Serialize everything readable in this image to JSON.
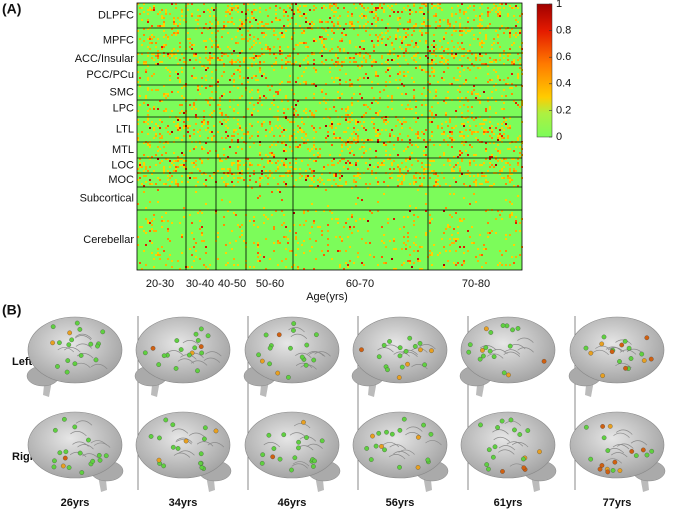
{
  "panel_a": {
    "label": "(A)",
    "regions": [
      "DLPFC",
      "MPFC",
      "ACC/Insular",
      "PCC/PCu",
      "SMC",
      "LPC",
      "LTL",
      "MTL",
      "LOC",
      "MOC",
      "Subcortical",
      "Cerebellar"
    ],
    "age_groups": [
      "20-30",
      "30-40",
      "40-50",
      "50-60",
      "60-70",
      "70-80"
    ],
    "xlabel": "Age(yrs)",
    "colorbar": {
      "lim": [
        0,
        1
      ],
      "ticks": [
        0,
        0.2,
        0.4,
        0.6,
        0.8,
        1
      ]
    }
  },
  "panel_b": {
    "label": "(B)",
    "rows": [
      "Left",
      "Right"
    ],
    "ages": [
      "26yrs",
      "34yrs",
      "46yrs",
      "56yrs",
      "61yrs",
      "77yrs"
    ]
  }
}
